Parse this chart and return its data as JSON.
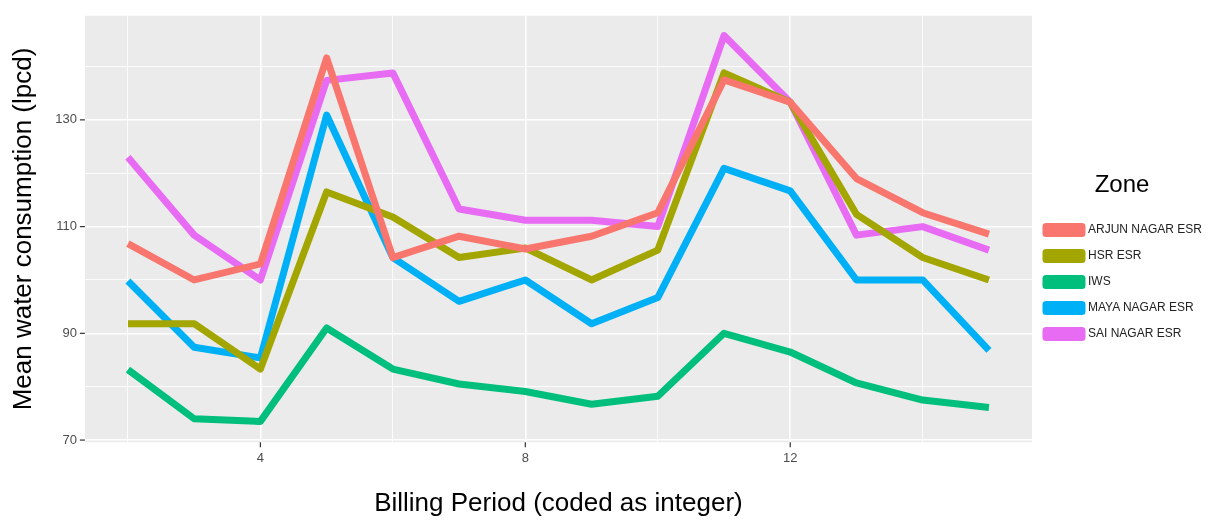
{
  "chart_data": {
    "type": "line",
    "xlabel": "Billing Period (coded as integer)",
    "ylabel": "Mean water consumption (lpcd)",
    "legend_title": "Zone",
    "legend": "right",
    "grid": true,
    "x": [
      2,
      3,
      4,
      5,
      6,
      7,
      8,
      9,
      10,
      11,
      12,
      13,
      14,
      15
    ],
    "xlim": [
      1.35,
      15.65
    ],
    "xticks": [
      {
        "value": 2,
        "label": null
      },
      4,
      {
        "value": 6,
        "label": null
      },
      8,
      {
        "value": 10,
        "label": null
      },
      12,
      {
        "value": 14,
        "label": null
      }
    ],
    "ylim": [
      69.6,
      149.5
    ],
    "yticks": [
      70,
      {
        "value": 80,
        "label": null
      },
      90,
      {
        "value": 100,
        "label": null
      },
      110,
      {
        "value": 120,
        "label": null
      },
      130,
      {
        "value": 140,
        "label": null
      }
    ],
    "series": [
      {
        "name": "ARJUN NAGAR ESR",
        "color": "#f8766d",
        "values": [
          106.8,
          100,
          103,
          141.6,
          104.2,
          108.2,
          105.8,
          108.2,
          112.6,
          137.5,
          133.3,
          119,
          112.6,
          108.6
        ]
      },
      {
        "name": "HSR ESR",
        "color": "#a3a500",
        "values": [
          91.8,
          91.8,
          83.3,
          116.5,
          111.8,
          104.2,
          106,
          100,
          105.6,
          138.8,
          133.3,
          112.3,
          104.2,
          100
        ]
      },
      {
        "name": "IWS",
        "color": "#00bf7d",
        "values": [
          83.2,
          74,
          73.5,
          91,
          83.3,
          80.5,
          79.1,
          76.7,
          78.2,
          90,
          86.5,
          80.7,
          77.5,
          76.1
        ]
      },
      {
        "name": "MAYA NAGAR ESR",
        "color": "#00b0f6",
        "values": [
          99.8,
          87.4,
          85.4,
          130.9,
          104.2,
          96,
          100,
          91.8,
          96.7,
          120.9,
          116.7,
          100,
          100,
          86.8
        ]
      },
      {
        "name": "SAI NAGAR ESR",
        "color": "#e76bf3",
        "values": [
          123,
          108.4,
          100,
          137.4,
          138.8,
          113.3,
          111.2,
          111.2,
          110,
          145.8,
          133.3,
          108.4,
          110,
          105.6
        ]
      }
    ]
  }
}
